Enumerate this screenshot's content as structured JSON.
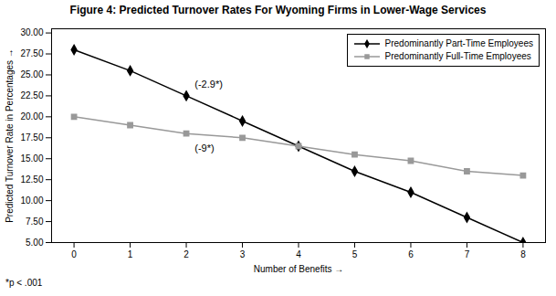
{
  "chart_data": {
    "type": "line",
    "title": "Figure 4: Predicted Turnover Rates For Wyoming Firms in Lower-Wage Services",
    "xlabel": "Number of Benefits",
    "ylabel": "Predicted Turnover Rate in Percentages",
    "x": [
      0,
      1,
      2,
      3,
      4,
      5,
      6,
      7,
      8
    ],
    "series": [
      {
        "name": "Predominantly Part-Time Employees",
        "color": "#000000",
        "marker": "diamond",
        "line_style": "solid",
        "values": [
          28.0,
          25.5,
          22.5,
          19.5,
          16.5,
          13.5,
          11.0,
          8.0,
          5.0
        ]
      },
      {
        "name": "Predominantly Full-Time Employees",
        "color": "#999999",
        "marker": "square",
        "line_style": "solid",
        "values": [
          20.0,
          19.0,
          18.0,
          17.5,
          16.5,
          15.5,
          14.75,
          13.5,
          13.0
        ]
      }
    ],
    "annotations": [
      {
        "text": "(-2.9*)",
        "x": 2.15,
        "y": 23.5
      },
      {
        "text": "(-9*)",
        "x": 2.15,
        "y": 15.8
      }
    ],
    "footnote": "*p < .001",
    "xlim": [
      -0.4,
      8.4
    ],
    "xticks": [
      0,
      1,
      2,
      3,
      4,
      5,
      6,
      7,
      8
    ],
    "ylim": [
      5.0,
      30.5
    ],
    "yticks": [
      {
        "value": 5.0,
        "label": "5.00"
      },
      {
        "value": 7.5,
        "label": "7.50"
      },
      {
        "value": 10.0,
        "label": "10.00"
      },
      {
        "value": 12.5,
        "label": "12.50"
      },
      {
        "value": 15.0,
        "label": "15.00"
      },
      {
        "value": 17.5,
        "label": "17.50"
      },
      {
        "value": 20.0,
        "label": "20.00"
      },
      {
        "value": 22.5,
        "label": "22.50"
      },
      {
        "value": 25.0,
        "label": "25.00"
      },
      {
        "value": 27.5,
        "label": "27.50"
      },
      {
        "value": 30.0,
        "label": "30.00"
      }
    ],
    "grid": false,
    "legend": "upper right"
  }
}
